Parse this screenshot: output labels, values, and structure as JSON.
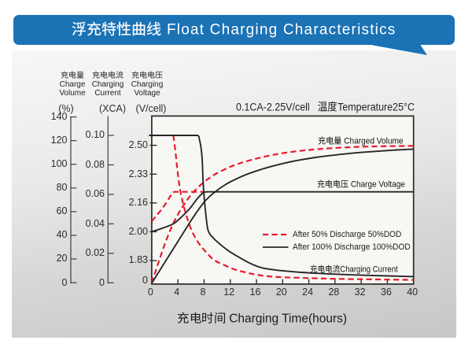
{
  "banner": {
    "title": "浮充特性曲线 Float Charging Characteristics"
  },
  "condition_title": "0.1CA-2.25V/cell   温度Temperature25°C",
  "x_axis_title": "充电时间 Charging Time(hours)",
  "axis_headers": [
    {
      "zh": "充电量",
      "en1": "Charge",
      "en2": "Volume",
      "unit": "(%)"
    },
    {
      "zh": "充电电流",
      "en1": "Charging",
      "en2": "Current",
      "unit": "(XCA)"
    },
    {
      "zh": "充电电压",
      "en1": "Charging",
      "en2": "Voltage",
      "unit": "(V/cell)"
    }
  ],
  "curve_labels": {
    "volume": "充电量 Charged Volume",
    "voltage": "充电电压 Charge Voltage",
    "current": "充电电流Charging Current"
  },
  "legend": [
    {
      "label": "After 50% Discharge 50%DOD",
      "style": "dashed",
      "color": "#e81b2a"
    },
    {
      "label": "After 100%  Discharge 100%DOD",
      "style": "solid",
      "color": "#2a2627"
    }
  ],
  "colors": {
    "banner_blue": "#1b72b5",
    "curve_red": "#e81b2a",
    "curve_black": "#2a2627",
    "frame": "#2b2b2b",
    "panel_light": "#f6f6f5",
    "panel_dark": "#c8c8c7",
    "plot_bg": "#f7f7f4",
    "text": "#231f20"
  },
  "chart_data": {
    "type": "line",
    "title": "0.1CA-2.25V/cell 温度Temperature25°C",
    "xlabel": "充电时间 Charging Time(hours)",
    "x_axis": {
      "range": [
        0,
        40
      ],
      "ticks": [
        "0",
        "4",
        "8",
        "12",
        "16",
        "20",
        "24",
        "28",
        "32",
        "36",
        "40"
      ]
    },
    "y_axes": [
      {
        "id": "percent",
        "label": "充电量 Charge Volume",
        "unit": "(%)",
        "range": [
          0,
          140
        ],
        "ticks": [
          "140",
          "120",
          "100",
          "80",
          "60",
          "40",
          "20",
          "0"
        ]
      },
      {
        "id": "xca",
        "label": "充电电流 Charging Current",
        "unit": "(XCA)",
        "range": [
          0,
          0.107
        ],
        "ticks": [
          "0.10",
          "0.08",
          "0.06",
          "0.04",
          "0.02",
          "0"
        ]
      },
      {
        "id": "vcell",
        "label": "充电电压 Charging Voltage",
        "unit": "(V/cell)",
        "range": [
          0,
          2.58
        ],
        "ticks": [
          "2.50",
          "2.33",
          "2.16",
          "2.00",
          "1.83",
          "0"
        ]
      }
    ],
    "legend_position": "inside right-center",
    "grid": false,
    "series": [
      {
        "name": "Charged Volume after 50% Discharge (50%DOD)",
        "axis": "percent",
        "style": "dashed",
        "color": "#e81b2a",
        "points": [
          [
            0,
            0
          ],
          [
            1,
            17
          ],
          [
            2,
            33
          ],
          [
            3,
            47
          ],
          [
            4,
            58
          ],
          [
            5,
            67
          ],
          [
            6,
            74.5
          ],
          [
            7,
            80.5
          ],
          [
            8,
            85.5
          ],
          [
            9,
            89.5
          ],
          [
            10,
            93
          ],
          [
            12,
            98.3
          ],
          [
            14,
            102.2
          ],
          [
            16,
            105.3
          ],
          [
            18,
            107.8
          ],
          [
            20,
            109.8
          ],
          [
            23,
            112
          ],
          [
            26,
            113.5
          ],
          [
            30,
            114.8
          ],
          [
            34,
            115.5
          ],
          [
            40,
            116
          ]
        ]
      },
      {
        "name": "Charged Volume after 100% Discharge (100%DOD)",
        "axis": "percent",
        "style": "solid",
        "color": "#2a2627",
        "points": [
          [
            0,
            0
          ],
          [
            2,
            17.6
          ],
          [
            4,
            35.2
          ],
          [
            6,
            52.8
          ],
          [
            7,
            61
          ],
          [
            8,
            68.5
          ],
          [
            9,
            74
          ],
          [
            10,
            78.5
          ],
          [
            11,
            82.3
          ],
          [
            12,
            85.6
          ],
          [
            14,
            90.8
          ],
          [
            16,
            94.8
          ],
          [
            18,
            98.2
          ],
          [
            20,
            101
          ],
          [
            22,
            103.4
          ],
          [
            25,
            106.2
          ],
          [
            28,
            108.3
          ],
          [
            31,
            110
          ],
          [
            34,
            111.3
          ],
          [
            37,
            112.4
          ],
          [
            40,
            113.2
          ]
        ]
      },
      {
        "name": "Charge Voltage after 50% Discharge (50%DOD)",
        "axis": "vcell",
        "style": "dashed",
        "color": "#e81b2a",
        "points": [
          [
            0,
            2.065
          ],
          [
            0.7,
            2.1
          ],
          [
            1.5,
            2.14
          ],
          [
            2.25,
            2.184
          ],
          [
            2.75,
            2.216
          ],
          [
            3.1,
            2.241
          ],
          [
            3.6,
            2.25
          ],
          [
            8,
            2.25
          ],
          [
            20,
            2.25
          ],
          [
            40,
            2.25
          ]
        ]
      },
      {
        "name": "Charge Voltage after 100% Discharge (100%DOD)",
        "axis": "vcell",
        "style": "solid",
        "color": "#2a2627",
        "points": [
          [
            0,
            2.0
          ],
          [
            1.5,
            2.02
          ],
          [
            3.3,
            2.05
          ],
          [
            4.5,
            2.09
          ],
          [
            5.8,
            2.145
          ],
          [
            6.9,
            2.204
          ],
          [
            7.6,
            2.235
          ],
          [
            8.1,
            2.248
          ],
          [
            8.7,
            2.25
          ],
          [
            20,
            2.25
          ],
          [
            40,
            2.25
          ]
        ]
      },
      {
        "name": "Charging Current after 50% Discharge (50%DOD)",
        "axis": "xca",
        "style": "dashed",
        "color": "#e81b2a",
        "points": [
          [
            0,
            0.1
          ],
          [
            3.3,
            0.1
          ],
          [
            3.62,
            0.089
          ],
          [
            3.84,
            0.08
          ],
          [
            4.07,
            0.071
          ],
          [
            4.38,
            0.062
          ],
          [
            4.84,
            0.053
          ],
          [
            5.43,
            0.0437
          ],
          [
            6.19,
            0.0347
          ],
          [
            7.23,
            0.0266
          ],
          [
            8.36,
            0.0206
          ],
          [
            9.5,
            0.0156
          ],
          [
            10.9,
            0.0125
          ],
          [
            12.6,
            0.0093
          ],
          [
            14.3,
            0.0072
          ],
          [
            16,
            0.0056
          ],
          [
            18.3,
            0.0043
          ],
          [
            22.5,
            0.0035
          ],
          [
            28.5,
            0.0028
          ],
          [
            34.5,
            0.0024
          ],
          [
            40,
            0.0021
          ]
        ]
      },
      {
        "name": "Charging Current after 100% Discharge (100%DOD)",
        "axis": "xca",
        "style": "solid",
        "color": "#2a2627",
        "points": [
          [
            0,
            0.1
          ],
          [
            7.0,
            0.1
          ],
          [
            7.3,
            0.097
          ],
          [
            7.55,
            0.091
          ],
          [
            7.72,
            0.0829
          ],
          [
            7.83,
            0.0707
          ],
          [
            7.99,
            0.0589
          ],
          [
            8.25,
            0.0472
          ],
          [
            8.62,
            0.0355
          ],
          [
            9.4,
            0.0305
          ],
          [
            10.4,
            0.0264
          ],
          [
            11.7,
            0.0219
          ],
          [
            13.5,
            0.017
          ],
          [
            15.1,
            0.0132
          ],
          [
            17,
            0.0101
          ],
          [
            19.5,
            0.0085
          ],
          [
            22.5,
            0.0073
          ],
          [
            25.5,
            0.0065
          ],
          [
            28.4,
            0.0059
          ],
          [
            32,
            0.0053
          ],
          [
            36,
            0.0048
          ],
          [
            40,
            0.0043
          ]
        ]
      }
    ]
  }
}
